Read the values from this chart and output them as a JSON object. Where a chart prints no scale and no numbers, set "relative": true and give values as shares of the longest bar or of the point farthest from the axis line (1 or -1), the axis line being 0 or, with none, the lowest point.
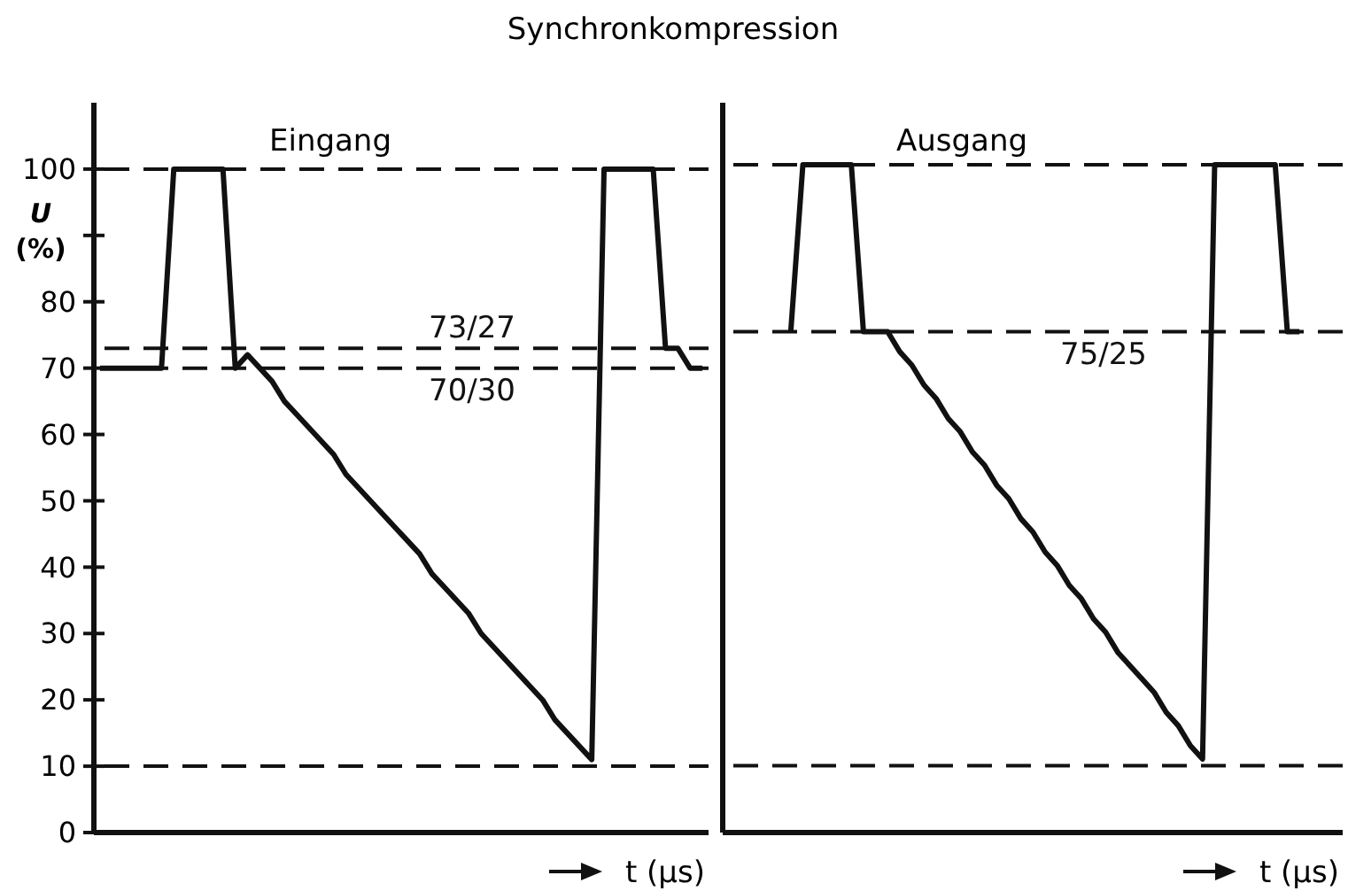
{
  "chart_data": [
    {
      "type": "line",
      "title": "Synchronkompression",
      "subtitle": "Eingang",
      "ylabel": "U (%)",
      "xlabel": "t (µs)",
      "categories": [
        null,
        null,
        null,
        null,
        null,
        null,
        null,
        null,
        null,
        null,
        null,
        null,
        null,
        null,
        null,
        null,
        null,
        null,
        null,
        null,
        null,
        null,
        null,
        null,
        null,
        null,
        null,
        null,
        null,
        null,
        null,
        null,
        null,
        null,
        null,
        null,
        null,
        null,
        null,
        null,
        null,
        null,
        null,
        null,
        null,
        null,
        null,
        null,
        null,
        null
      ],
      "ylim": [
        0,
        110
      ],
      "yticks": [
        0,
        10,
        20,
        30,
        40,
        50,
        60,
        70,
        80,
        {
          "value": 90,
          "label": null
        },
        100
      ],
      "tick_labels": "y",
      "grid": false,
      "marker": "none",
      "series": [
        {
          "color": "#111111",
          "line_style": "solid",
          "values": [
            70,
            70,
            70,
            70,
            70,
            70,
            100,
            100,
            100,
            100,
            100,
            70,
            72,
            70,
            68,
            65,
            63,
            61,
            59,
            57,
            54,
            52,
            50,
            48,
            46,
            44,
            42,
            39,
            37,
            35,
            33,
            30,
            28,
            26,
            24,
            22,
            20,
            17,
            15,
            13,
            11,
            100,
            100,
            100,
            100,
            100,
            73,
            73,
            70,
            70
          ]
        }
      ],
      "ref_lines": [
        {
          "axis": "y",
          "value": 100,
          "line_style": "dashed"
        },
        {
          "axis": "y",
          "value": 73,
          "line_style": "dashed"
        },
        {
          "axis": "y",
          "value": 70,
          "line_style": "dashed"
        },
        {
          "axis": "y",
          "value": 10,
          "line_style": "dashed"
        }
      ],
      "annotations": [
        {
          "text": "73/27",
          "y": 73
        },
        {
          "text": "70/30",
          "y": 70
        }
      ]
    },
    {
      "type": "line",
      "subtitle": "Ausgang",
      "xlabel": "t (µs)",
      "categories": [
        null,
        null,
        null,
        null,
        null,
        null,
        null,
        null,
        null,
        null,
        null,
        null,
        null,
        null,
        null,
        null,
        null,
        null,
        null,
        null,
        null,
        null,
        null,
        null,
        null,
        null,
        null,
        null,
        null,
        null,
        null,
        null,
        null,
        null,
        null,
        null,
        null,
        null,
        null,
        null,
        null,
        null,
        null
      ],
      "relative": true,
      "grid": false,
      "marker": "none",
      "series": [
        {
          "color": "#111111",
          "line_style": "solid",
          "values": [
            0.75,
            1,
            1,
            1,
            1,
            1,
            0.75,
            0.75,
            0.75,
            0.72,
            0.7,
            0.67,
            0.65,
            0.62,
            0.6,
            0.57,
            0.55,
            0.52,
            0.5,
            0.47,
            0.45,
            0.42,
            0.4,
            0.37,
            0.35,
            0.32,
            0.3,
            0.27,
            0.25,
            0.23,
            0.21,
            0.18,
            0.16,
            0.13,
            0.11,
            1,
            1,
            1,
            1,
            1,
            1,
            0.75,
            0.75
          ]
        }
      ],
      "ref_lines": [
        {
          "axis": "y",
          "value": 1,
          "line_style": "dashed"
        },
        {
          "axis": "y",
          "value": 0.75,
          "line_style": "dashed"
        },
        {
          "axis": "y",
          "value": 0.1,
          "line_style": "dashed"
        }
      ],
      "annotations": [
        {
          "text": "75/25",
          "y": 0.75
        }
      ]
    }
  ]
}
